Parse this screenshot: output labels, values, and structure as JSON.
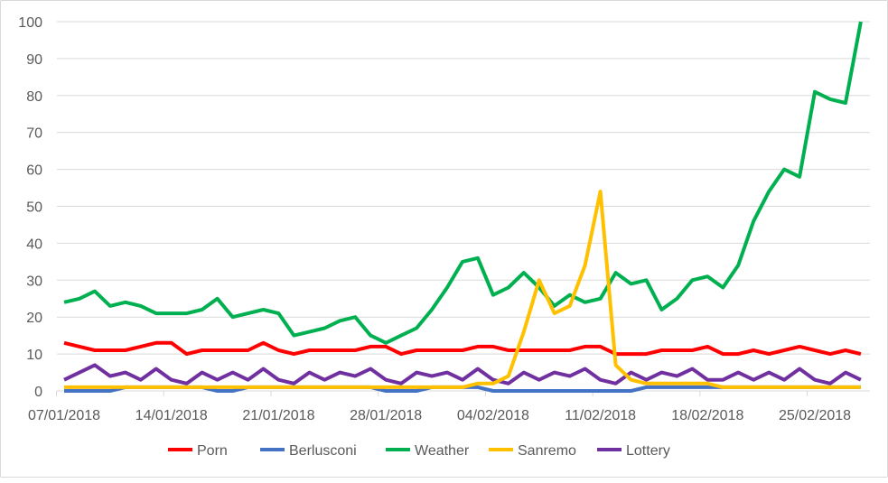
{
  "chart_data": {
    "type": "line",
    "title": "",
    "xlabel": "",
    "ylabel": "",
    "ylim": [
      0,
      100
    ],
    "yticks": [
      "0",
      "10",
      "20",
      "30",
      "40",
      "50",
      "60",
      "70",
      "80",
      "90",
      "100"
    ],
    "xtick_labels": [
      "07/01/2018",
      "14/01/2018",
      "21/01/2018",
      "28/01/2018",
      "04/02/2018",
      "11/02/2018",
      "18/02/2018",
      "25/02/2018"
    ],
    "x_start": "07/01/2018",
    "x_end": "28/02/2018",
    "x_step": "1 day",
    "grid": "horizontal",
    "legend_position": "bottom",
    "series": [
      {
        "name": "Porn",
        "color": "#ff0000",
        "values": [
          13,
          12,
          11,
          11,
          11,
          12,
          13,
          13,
          10,
          11,
          11,
          11,
          11,
          13,
          11,
          10,
          11,
          11,
          11,
          11,
          12,
          12,
          10,
          11,
          11,
          11,
          11,
          12,
          12,
          11,
          11,
          11,
          11,
          11,
          12,
          12,
          10,
          10,
          10,
          11,
          11,
          11,
          12,
          10,
          10,
          11,
          10,
          11,
          12,
          11,
          10,
          11,
          10
        ]
      },
      {
        "name": "Berlusconi",
        "color": "#4472c4",
        "values": [
          0,
          0,
          0,
          0,
          1,
          1,
          1,
          1,
          1,
          1,
          0,
          0,
          1,
          1,
          1,
          1,
          1,
          1,
          1,
          1,
          1,
          0,
          0,
          0,
          1,
          1,
          1,
          1,
          0,
          0,
          0,
          0,
          0,
          0,
          0,
          0,
          0,
          0,
          1,
          1,
          1,
          1,
          1,
          1,
          1,
          1,
          1,
          1,
          1,
          1,
          1,
          1,
          1
        ]
      },
      {
        "name": "Weather",
        "color": "#00b050",
        "values": [
          24,
          25,
          27,
          23,
          24,
          23,
          21,
          21,
          21,
          22,
          25,
          20,
          21,
          22,
          21,
          15,
          16,
          17,
          19,
          20,
          15,
          13,
          15,
          17,
          22,
          28,
          35,
          36,
          26,
          28,
          32,
          28,
          23,
          26,
          24,
          25,
          32,
          29,
          30,
          22,
          25,
          30,
          31,
          28,
          34,
          46,
          54,
          60,
          58,
          81,
          79,
          78,
          100
        ]
      },
      {
        "name": "Sanremo",
        "color": "#ffc000",
        "values": [
          1,
          1,
          1,
          1,
          1,
          1,
          1,
          1,
          1,
          1,
          1,
          1,
          1,
          1,
          1,
          1,
          1,
          1,
          1,
          1,
          1,
          1,
          1,
          1,
          1,
          1,
          1,
          2,
          2,
          4,
          16,
          30,
          21,
          23,
          34,
          54,
          7,
          3,
          2,
          2,
          2,
          2,
          2,
          1,
          1,
          1,
          1,
          1,
          1,
          1,
          1,
          1,
          1
        ]
      },
      {
        "name": "Lottery",
        "color": "#7030a0",
        "values": [
          3,
          5,
          7,
          4,
          5,
          3,
          6,
          3,
          2,
          5,
          3,
          5,
          3,
          6,
          3,
          2,
          5,
          3,
          5,
          4,
          6,
          3,
          2,
          5,
          4,
          5,
          3,
          6,
          3,
          2,
          5,
          3,
          5,
          4,
          6,
          3,
          2,
          5,
          3,
          5,
          4,
          6,
          3,
          3,
          5,
          3,
          5,
          3,
          6,
          3,
          2,
          5,
          3
        ]
      }
    ]
  }
}
